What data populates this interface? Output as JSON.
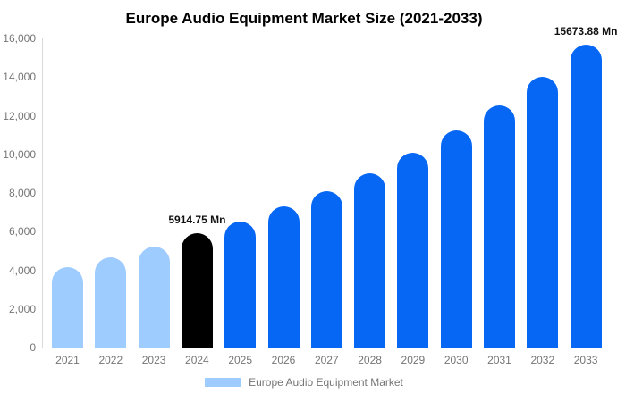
{
  "chart_data": {
    "type": "bar",
    "title": "Europe Audio Equipment Market Size (2021-2033)",
    "unit": "Mn",
    "categories": [
      "2021",
      "2022",
      "2023",
      "2024",
      "2025",
      "2026",
      "2027",
      "2028",
      "2029",
      "2030",
      "2031",
      "2032",
      "2033"
    ],
    "values": [
      4150,
      4650,
      5230,
      5914.75,
      6500,
      7300,
      8100,
      9000,
      10100,
      11250,
      12550,
      14000,
      15673.88
    ],
    "bar_roles": [
      "historical",
      "historical",
      "historical",
      "current",
      "forecast",
      "forecast",
      "forecast",
      "forecast",
      "forecast",
      "forecast",
      "forecast",
      "forecast",
      "forecast"
    ],
    "colors": {
      "historical": "#9FCCFF",
      "current": "#000000",
      "forecast": "#0667F5",
      "axis_line": "#D9D9D9",
      "tick_text": "#757575",
      "title_text": "#000000",
      "annotation_text": "#111111"
    },
    "xlabel": "",
    "ylabel": "",
    "ylim": [
      0,
      16000
    ],
    "grid": false,
    "yticks": [
      {
        "value": 0,
        "label": "0"
      },
      {
        "value": 2000,
        "label": "2,000"
      },
      {
        "value": 4000,
        "label": "4,000"
      },
      {
        "value": 6000,
        "label": "6,000"
      },
      {
        "value": 8000,
        "label": "8,000"
      },
      {
        "value": 10000,
        "label": "10,000"
      },
      {
        "value": 12000,
        "label": "12,000"
      },
      {
        "value": 14000,
        "label": "14,000"
      },
      {
        "value": 16000,
        "label": "16,000"
      }
    ],
    "annotations": [
      {
        "category": "2024",
        "text": "5914.75 Mn"
      },
      {
        "category": "2033",
        "text": "15673.88 Mn",
        "clipped_at_right_edge": true
      }
    ],
    "legend": {
      "position": "bottom",
      "entries": [
        {
          "label": "Europe Audio Equipment Market",
          "swatch_color": "#9FCCFF"
        }
      ]
    }
  }
}
